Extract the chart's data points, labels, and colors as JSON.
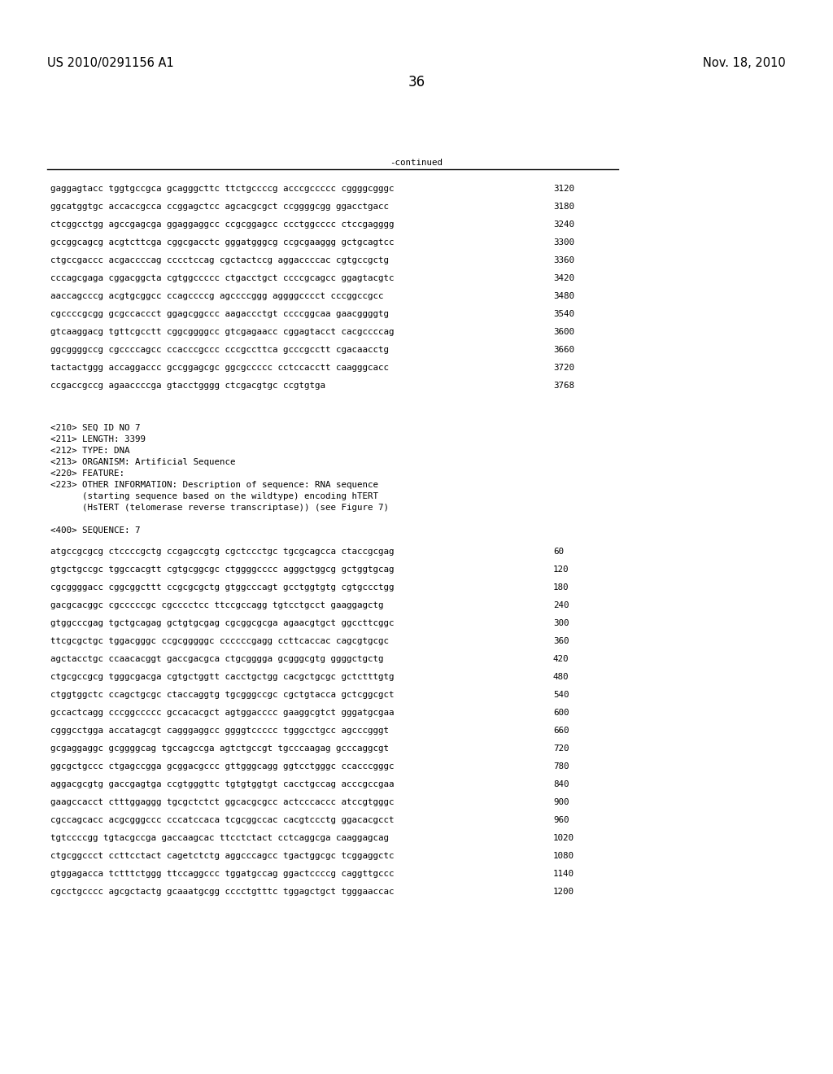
{
  "header_left": "US 2010/0291156 A1",
  "header_right": "Nov. 18, 2010",
  "page_number": "36",
  "continued_label": "-continued",
  "background_color": "#ffffff",
  "text_color": "#000000",
  "font_size_header": 10.5,
  "font_size_body": 7.8,
  "font_size_page": 12,
  "sequence_lines_top": [
    [
      "gaggagtacc tggtgccgca gcagggcttc ttctgccccg acccgccccc cggggcgggc",
      "3120"
    ],
    [
      "ggcatggtgc accaccgcca ccggagctcc agcacgcgct ccggggcgg ggacctgacc",
      "3180"
    ],
    [
      "ctcggcctgg agccgagcga ggaggaggcc ccgcggagcc ccctggcccc ctccgagggg",
      "3240"
    ],
    [
      "gccggcagcg acgtcttcga cggcgacctc gggatgggcg ccgcgaaggg gctgcagtcc",
      "3300"
    ],
    [
      "ctgccgaccc acgaccccag cccctccag cgctactccg aggaccccac cgtgccgctg",
      "3360"
    ],
    [
      "cccagcgaga cggacggcta cgtggccccc ctgacctgct ccccgcagcc ggagtacgtc",
      "3420"
    ],
    [
      "aaccagcccg acgtgcggcc ccagccccg agccccggg aggggcccct cccggccgcc",
      "3480"
    ],
    [
      "cgccccgcgg gcgccaccct ggagcggccc aagaccctgt ccccggcaa gaacggggtg",
      "3540"
    ],
    [
      "gtcaaggacg tgttcgcctt cggcggggcc gtcgagaacc cggagtacct cacgccccag",
      "3600"
    ],
    [
      "ggcggggccg cgccccagcc ccacccgccc cccgccttca gcccgcctt cgacaacctg",
      "3660"
    ],
    [
      "tactactggg accaggaccc gccggagcgc ggcgccccc cctccacctt caagggcacc",
      "3720"
    ],
    [
      "ccgaccgccg agaaccccga gtacctgggg ctcgacgtgc ccgtgtga",
      "3768"
    ]
  ],
  "metadata_lines": [
    "<210> SEQ ID NO 7",
    "<211> LENGTH: 3399",
    "<212> TYPE: DNA",
    "<213> ORGANISM: Artificial Sequence",
    "<220> FEATURE:",
    "<223> OTHER INFORMATION: Description of sequence: RNA sequence",
    "      (starting sequence based on the wildtype) encoding hTERT",
    "      (HsTERT (telomerase reverse transcriptase)) (see Figure 7)"
  ],
  "sequence_label": "<400> SEQUENCE: 7",
  "sequence_lines_bottom": [
    [
      "atgccgcgcg ctccccgctg ccgagccgtg cgctccctgc tgcgcagcca ctaccgcgag",
      "60"
    ],
    [
      "gtgctgccgc tggccacgtt cgtgcggcgc ctggggcccc agggctggcg gctggtgcag",
      "120"
    ],
    [
      "cgcggggacc cggcggcttt ccgcgcgctg gtggcccagt gcctggtgtg cgtgccctgg",
      "180"
    ],
    [
      "gacgcacggc cgcccccgc cgcccctcc ttccgccagg tgtcctgcct gaaggagctg",
      "240"
    ],
    [
      "gtggcccgag tgctgcagag gctgtgcgag cgcggcgcga agaacgtgct ggccttcggc",
      "300"
    ],
    [
      "ttcgcgctgc tggacgggc ccgcgggggc ccccccgagg ccttcaccac cagcgtgcgc",
      "360"
    ],
    [
      "agctacctgc ccaacacggt gaccgacgca ctgcgggga gcgggcgtg ggggctgctg",
      "420"
    ],
    [
      "ctgcgccgcg tgggcgacga cgtgctggtt cacctgctgg cacgctgcgc gctctttgtg",
      "480"
    ],
    [
      "ctggtggctc ccagctgcgc ctaccaggtg tgcgggccgc cgctgtacca gctcggcgct",
      "540"
    ],
    [
      "gccactcagg cccggccccc gccacacgct agtggacccc gaaggcgtct gggatgcgaa",
      "600"
    ],
    [
      "cgggcctgga accatagcgt cagggaggcc ggggtccccc tgggcctgcc agcccgggt",
      "660"
    ],
    [
      "gcgaggaggc gcggggcag tgccagccga agtctgccgt tgcccaagag gcccaggcgt",
      "720"
    ],
    [
      "ggcgctgccc ctgagccgga gcggacgccc gttgggcagg ggtcctgggc ccacccgggc",
      "780"
    ],
    [
      "aggacgcgtg gaccgagtga ccgtgggttc tgtgtggtgt cacctgccag acccgccgaa",
      "840"
    ],
    [
      "gaagccacct ctttggaggg tgcgctctct ggcacgcgcc actcccaccc atccgtgggc",
      "900"
    ],
    [
      "cgccagcacc acgcgggccc cccatccaca tcgcggccac cacgtccctg ggacacgcct",
      "960"
    ],
    [
      "tgtccccgg tgtacgccga gaccaagcac ttcctctact cctcaggcga caaggagcag",
      "1020"
    ],
    [
      "ctgcggccct ccttcctact cagetctctg aggcccagcc tgactggcgc tcggaggctc",
      "1080"
    ],
    [
      "gtggagacca tctttctggg ttccaggccc tggatgccag ggactccccg caggttgccc",
      "1140"
    ],
    [
      "cgcctgcccc agcgctactg gcaaatgcgg cccctgtttc tggagctgct tgggaaccac",
      "1200"
    ]
  ]
}
